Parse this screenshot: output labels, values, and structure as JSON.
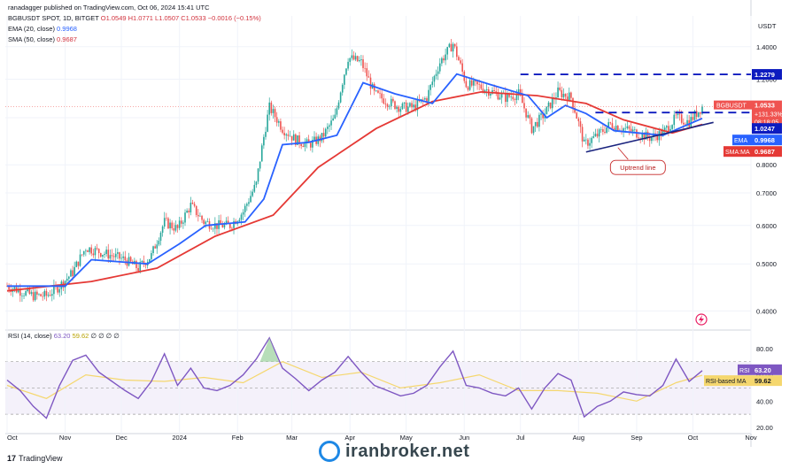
{
  "header": {
    "publisher": "ranadagger published on TradingView.com, Oct 06, 2024 15:41 UTC",
    "symbol_line": "BGBUSDT SPOT, 1D, BITGET",
    "ohlc": "O1.0549 H1.0771 L1.0507 C1.0533 −0.0016 (−0.15%)",
    "ema_label": "EMA (20, close)",
    "ema_value": "0.9968",
    "sma_label": "SMA (50, close)",
    "sma_value": "0.9687"
  },
  "rsi_legend": {
    "label": "RSI (14, close)",
    "rsi": "63.20",
    "ma": "59.62",
    "zeros": "∅ ∅ ∅ ∅"
  },
  "brand": {
    "name": "TradingView"
  },
  "watermark": {
    "text": "iranbroker.net"
  },
  "colors": {
    "up": "#26a69a",
    "down": "#ef5350",
    "ema": "#2962ff",
    "sma": "#e53935",
    "rsi": "#7e57c2",
    "rsi_ma": "#f5d76e",
    "rsi_band": "#ede7f6"
  },
  "chart_data": [
    {
      "type": "candlestick",
      "title": "BGBUSDT SPOT, 1D, BITGET",
      "currency": "USDT",
      "scale": "log",
      "ylim": [
        0.37,
        1.62
      ],
      "y_ticks": [
        0.4,
        0.5,
        0.6,
        0.7,
        0.8,
        1.0,
        1.2,
        1.4
      ],
      "y_tick_labels": [
        "0.4000",
        "0.5000",
        "0.6000",
        "0.7000",
        "0.8000",
        "1.0000",
        "1.2000",
        "1.4000"
      ],
      "x_tick_labels": [
        "Oct",
        "Nov",
        "Dec",
        "2024",
        "Feb",
        "Mar",
        "Apr",
        "May",
        "Jun",
        "Jul",
        "Aug",
        "Sep",
        "Oct",
        "Nov"
      ],
      "close_path": [
        [
          "2023-10-01",
          0.45
        ],
        [
          "2023-10-08",
          0.44
        ],
        [
          "2023-10-15",
          0.43
        ],
        [
          "2023-10-22",
          0.43
        ],
        [
          "2023-10-29",
          0.45
        ],
        [
          "2023-11-05",
          0.48
        ],
        [
          "2023-11-12",
          0.54
        ],
        [
          "2023-11-19",
          0.53
        ],
        [
          "2023-11-26",
          0.52
        ],
        [
          "2023-12-03",
          0.51
        ],
        [
          "2023-12-10",
          0.49
        ],
        [
          "2023-12-17",
          0.52
        ],
        [
          "2023-12-24",
          0.61
        ],
        [
          "2023-12-31",
          0.59
        ],
        [
          "2024-01-07",
          0.66
        ],
        [
          "2024-01-14",
          0.61
        ],
        [
          "2024-01-21",
          0.6
        ],
        [
          "2024-01-28",
          0.6
        ],
        [
          "2024-02-04",
          0.64
        ],
        [
          "2024-02-11",
          0.73
        ],
        [
          "2024-02-18",
          1.05
        ],
        [
          "2024-02-25",
          0.95
        ],
        [
          "2024-03-03",
          0.9
        ],
        [
          "2024-03-10",
          0.88
        ],
        [
          "2024-03-17",
          0.91
        ],
        [
          "2024-03-24",
          1.0
        ],
        [
          "2024-03-31",
          1.33
        ],
        [
          "2024-04-07",
          1.3
        ],
        [
          "2024-04-14",
          1.12
        ],
        [
          "2024-04-21",
          1.08
        ],
        [
          "2024-04-28",
          1.05
        ],
        [
          "2024-05-05",
          1.05
        ],
        [
          "2024-05-12",
          1.1
        ],
        [
          "2024-05-19",
          1.3
        ],
        [
          "2024-05-26",
          1.42
        ],
        [
          "2024-06-02",
          1.17
        ],
        [
          "2024-06-09",
          1.16
        ],
        [
          "2024-06-16",
          1.13
        ],
        [
          "2024-06-23",
          1.1
        ],
        [
          "2024-06-30",
          1.12
        ],
        [
          "2024-07-07",
          0.95
        ],
        [
          "2024-07-14",
          1.02
        ],
        [
          "2024-07-21",
          1.13
        ],
        [
          "2024-07-28",
          1.1
        ],
        [
          "2024-08-04",
          0.88
        ],
        [
          "2024-08-11",
          0.92
        ],
        [
          "2024-08-18",
          0.97
        ],
        [
          "2024-08-25",
          0.95
        ],
        [
          "2024-09-01",
          0.93
        ],
        [
          "2024-09-08",
          0.91
        ],
        [
          "2024-09-15",
          0.93
        ],
        [
          "2024-09-22",
          1.0
        ],
        [
          "2024-09-29",
          0.98
        ],
        [
          "2024-10-06",
          1.0533
        ]
      ],
      "ema_20_path": [
        [
          "2023-10-01",
          0.45
        ],
        [
          "2023-11-01",
          0.45
        ],
        [
          "2023-11-15",
          0.51
        ],
        [
          "2023-12-15",
          0.5
        ],
        [
          "2024-01-01",
          0.55
        ],
        [
          "2024-01-15",
          0.6
        ],
        [
          "2024-02-05",
          0.61
        ],
        [
          "2024-02-15",
          0.68
        ],
        [
          "2024-02-25",
          0.88
        ],
        [
          "2024-03-10",
          0.89
        ],
        [
          "2024-03-25",
          0.92
        ],
        [
          "2024-04-08",
          1.18
        ],
        [
          "2024-04-25",
          1.12
        ],
        [
          "2024-05-15",
          1.07
        ],
        [
          "2024-05-28",
          1.23
        ],
        [
          "2024-06-15",
          1.17
        ],
        [
          "2024-07-05",
          1.11
        ],
        [
          "2024-07-15",
          1.0
        ],
        [
          "2024-07-25",
          1.06
        ],
        [
          "2024-08-05",
          1.02
        ],
        [
          "2024-08-20",
          0.94
        ],
        [
          "2024-09-15",
          0.92
        ],
        [
          "2024-10-06",
          0.9968
        ]
      ],
      "sma_50_path": [
        [
          "2023-10-01",
          0.44
        ],
        [
          "2023-11-15",
          0.46
        ],
        [
          "2023-12-20",
          0.49
        ],
        [
          "2024-01-20",
          0.57
        ],
        [
          "2024-02-20",
          0.63
        ],
        [
          "2024-03-15",
          0.79
        ],
        [
          "2024-04-15",
          0.95
        ],
        [
          "2024-05-15",
          1.08
        ],
        [
          "2024-06-10",
          1.13
        ],
        [
          "2024-07-10",
          1.11
        ],
        [
          "2024-08-05",
          1.07
        ],
        [
          "2024-08-25",
          0.99
        ],
        [
          "2024-09-20",
          0.93
        ],
        [
          "2024-10-06",
          0.9687
        ]
      ],
      "resistance_level": 1.2279,
      "breakout_level": 1.0247,
      "uptrend_line": [
        [
          "2024-08-05",
          0.85
        ],
        [
          "2024-10-12",
          0.978
        ]
      ],
      "annotations": [
        "Uptrend line"
      ],
      "price_labels": [
        {
          "name": "resistance",
          "text": "1.2279"
        },
        {
          "name": "last-price",
          "lines": [
            "BGBUSDT",
            "1.0533",
            "+131.33%",
            "08:18:05"
          ]
        },
        {
          "name": "breakout",
          "text": "1.0247"
        },
        {
          "name": "ema",
          "title": "EMA",
          "text": "0.9968"
        },
        {
          "name": "sma",
          "title": "SMA:MA",
          "text": "0.9687"
        }
      ]
    },
    {
      "type": "line",
      "title": "RSI (14, close)",
      "ylim": [
        18,
        92
      ],
      "y_ticks": [
        20,
        40,
        60,
        80
      ],
      "y_tick_labels": [
        "20.00",
        "40.00",
        "60.00",
        "80.00"
      ],
      "band": [
        30,
        70
      ],
      "series": [
        {
          "name": "RSI",
          "values": [
            [
              "2023-10-01",
              56
            ],
            [
              "2023-10-08",
              48
            ],
            [
              "2023-10-15",
              36
            ],
            [
              "2023-10-22",
              27
            ],
            [
              "2023-10-29",
              52
            ],
            [
              "2023-11-05",
              71
            ],
            [
              "2023-11-12",
              75
            ],
            [
              "2023-11-19",
              62
            ],
            [
              "2023-11-26",
              55
            ],
            [
              "2023-12-03",
              48
            ],
            [
              "2023-12-10",
              42
            ],
            [
              "2023-12-17",
              55
            ],
            [
              "2023-12-24",
              76
            ],
            [
              "2023-12-31",
              52
            ],
            [
              "2024-01-07",
              65
            ],
            [
              "2024-01-14",
              50
            ],
            [
              "2024-01-21",
              48
            ],
            [
              "2024-01-28",
              52
            ],
            [
              "2024-02-04",
              60
            ],
            [
              "2024-02-11",
              72
            ],
            [
              "2024-02-18",
              88
            ],
            [
              "2024-02-25",
              65
            ],
            [
              "2024-03-03",
              57
            ],
            [
              "2024-03-10",
              48
            ],
            [
              "2024-03-17",
              56
            ],
            [
              "2024-03-24",
              62
            ],
            [
              "2024-03-31",
              74
            ],
            [
              "2024-04-07",
              62
            ],
            [
              "2024-04-14",
              52
            ],
            [
              "2024-04-21",
              48
            ],
            [
              "2024-04-28",
              44
            ],
            [
              "2024-05-05",
              46
            ],
            [
              "2024-05-12",
              52
            ],
            [
              "2024-05-19",
              66
            ],
            [
              "2024-05-26",
              78
            ],
            [
              "2024-06-02",
              52
            ],
            [
              "2024-06-09",
              50
            ],
            [
              "2024-06-16",
              46
            ],
            [
              "2024-06-23",
              44
            ],
            [
              "2024-06-30",
              50
            ],
            [
              "2024-07-07",
              34
            ],
            [
              "2024-07-14",
              50
            ],
            [
              "2024-07-21",
              61
            ],
            [
              "2024-07-28",
              56
            ],
            [
              "2024-08-04",
              28
            ],
            [
              "2024-08-11",
              36
            ],
            [
              "2024-08-18",
              40
            ],
            [
              "2024-08-25",
              47
            ],
            [
              "2024-09-01",
              45
            ],
            [
              "2024-09-08",
              44
            ],
            [
              "2024-09-15",
              52
            ],
            [
              "2024-09-22",
              72
            ],
            [
              "2024-09-29",
              55
            ],
            [
              "2024-10-06",
              63.2
            ]
          ]
        },
        {
          "name": "RSI-based MA",
          "values": [
            [
              "2023-10-01",
              52
            ],
            [
              "2023-10-22",
              42
            ],
            [
              "2023-11-12",
              60
            ],
            [
              "2023-12-03",
              56
            ],
            [
              "2023-12-24",
              55
            ],
            [
              "2024-01-14",
              58
            ],
            [
              "2024-02-04",
              54
            ],
            [
              "2024-02-25",
              70
            ],
            [
              "2024-03-17",
              58
            ],
            [
              "2024-04-07",
              62
            ],
            [
              "2024-04-28",
              50
            ],
            [
              "2024-05-19",
              54
            ],
            [
              "2024-06-09",
              60
            ],
            [
              "2024-06-30",
              48
            ],
            [
              "2024-07-21",
              48
            ],
            [
              "2024-08-11",
              46
            ],
            [
              "2024-09-01",
              40
            ],
            [
              "2024-09-22",
              54
            ],
            [
              "2024-10-06",
              59.62
            ]
          ]
        }
      ],
      "price_labels": [
        {
          "name": "rsi",
          "title": "RSI",
          "text": "63.20"
        },
        {
          "name": "rsi-ma",
          "title": "RSI-based MA",
          "text": "59.62"
        }
      ]
    }
  ]
}
